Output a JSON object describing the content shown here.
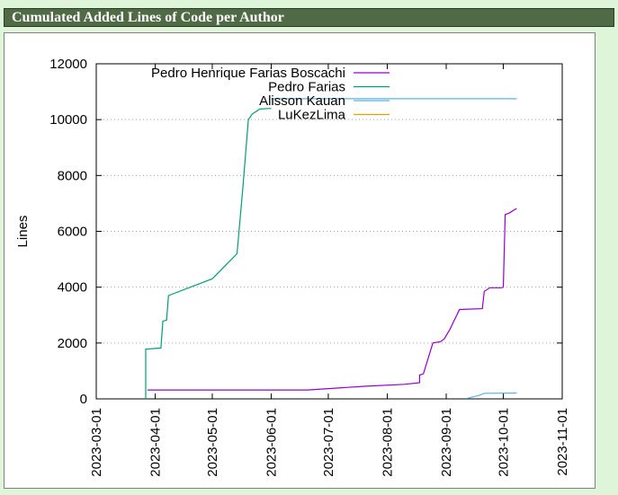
{
  "header": {
    "title": "Cumulated Added Lines of Code per Author"
  },
  "chart_data": {
    "type": "line",
    "title": "",
    "xlabel": "",
    "ylabel": "Lines",
    "xlim": [
      "2023-03-01",
      "2023-11-01"
    ],
    "ylim": [
      0,
      12000
    ],
    "xticks": [
      "2023-03-01",
      "2023-04-01",
      "2023-05-01",
      "2023-06-01",
      "2023-07-01",
      "2023-08-01",
      "2023-09-01",
      "2023-10-01",
      "2023-11-01"
    ],
    "yticks": [
      0,
      2000,
      4000,
      6000,
      8000,
      10000,
      12000
    ],
    "grid": true,
    "legend_position": "top-right",
    "series": [
      {
        "name": "Pedro Henrique Farias Boscachi",
        "color": "#9400d3",
        "points": [
          [
            "2023-03-28",
            320
          ],
          [
            "2023-06-20",
            320
          ],
          [
            "2023-07-20",
            450
          ],
          [
            "2023-08-10",
            520
          ],
          [
            "2023-08-18",
            580
          ],
          [
            "2023-08-18",
            850
          ],
          [
            "2023-08-20",
            900
          ],
          [
            "2023-08-25",
            2000
          ],
          [
            "2023-08-29",
            2050
          ],
          [
            "2023-08-31",
            2150
          ],
          [
            "2023-09-03",
            2500
          ],
          [
            "2023-09-08",
            3200
          ],
          [
            "2023-09-20",
            3230
          ],
          [
            "2023-09-21",
            3850
          ],
          [
            "2023-09-24",
            3980
          ],
          [
            "2023-09-30",
            3980
          ],
          [
            "2023-10-01",
            4000
          ],
          [
            "2023-10-02",
            6600
          ],
          [
            "2023-10-04",
            6650
          ],
          [
            "2023-10-08",
            6820
          ]
        ]
      },
      {
        "name": "Pedro Farias",
        "color": "#009e73",
        "points": [
          [
            "2023-03-27",
            0
          ],
          [
            "2023-03-27",
            1780
          ],
          [
            "2023-04-04",
            1820
          ],
          [
            "2023-04-05",
            2780
          ],
          [
            "2023-04-07",
            2820
          ],
          [
            "2023-04-08",
            3700
          ],
          [
            "2023-05-01",
            4300
          ],
          [
            "2023-05-14",
            5200
          ],
          [
            "2023-05-17",
            7500
          ],
          [
            "2023-05-20",
            10000
          ],
          [
            "2023-05-22",
            10200
          ],
          [
            "2023-05-26",
            10380
          ],
          [
            "2023-06-01",
            10400
          ]
        ]
      },
      {
        "name": "Alisson Kauan",
        "color": "#56b4e9",
        "points": [
          [
            "2023-06-01",
            10750
          ],
          [
            "2023-10-08",
            10750
          ],
          [
            "2023-09-12",
            20
          ],
          [
            "2023-09-15",
            70
          ],
          [
            "2023-09-18",
            120
          ],
          [
            "2023-09-21",
            200
          ],
          [
            "2023-10-08",
            210
          ]
        ]
      },
      {
        "name": "LuKezLima",
        "color": "#e69f00",
        "points": []
      }
    ]
  }
}
